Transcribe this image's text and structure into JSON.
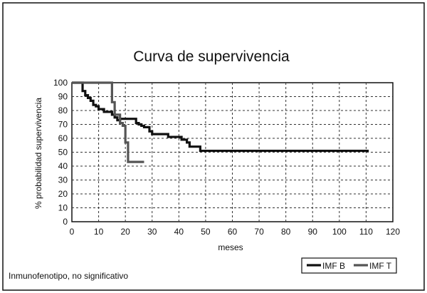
{
  "chart_data": {
    "type": "line",
    "title": "Curva de supervivencia",
    "xlabel": "meses",
    "ylabel": "% probabilidad supervivencia",
    "xlim": [
      0,
      120
    ],
    "ylim": [
      0,
      100
    ],
    "xticks": [
      0,
      10,
      20,
      30,
      40,
      50,
      60,
      70,
      80,
      90,
      100,
      110,
      120
    ],
    "yticks": [
      0,
      10,
      20,
      30,
      40,
      50,
      60,
      70,
      80,
      90,
      100
    ],
    "grid": true,
    "step": true,
    "legend_position": "bottom-right",
    "series": [
      {
        "name": "IMF B",
        "color": "#111111",
        "x": [
          0,
          4,
          5,
          6,
          7,
          8,
          9,
          10,
          12,
          15,
          16,
          17,
          18,
          24,
          25,
          26,
          27,
          29,
          30,
          36,
          41,
          43,
          44,
          48,
          111
        ],
        "y": [
          100,
          94,
          91,
          89,
          87,
          84,
          83,
          81,
          79,
          77,
          75,
          73,
          74,
          71,
          70,
          69,
          68,
          65,
          63,
          61,
          59,
          57,
          54,
          51,
          51
        ]
      },
      {
        "name": "IMF T",
        "color": "#555555",
        "x": [
          0,
          15,
          16,
          18,
          19,
          20,
          21,
          27
        ],
        "y": [
          100,
          86,
          77,
          71,
          69,
          57,
          43,
          43
        ]
      }
    ]
  },
  "footnote": "Inmunofenotipo, no significativo"
}
